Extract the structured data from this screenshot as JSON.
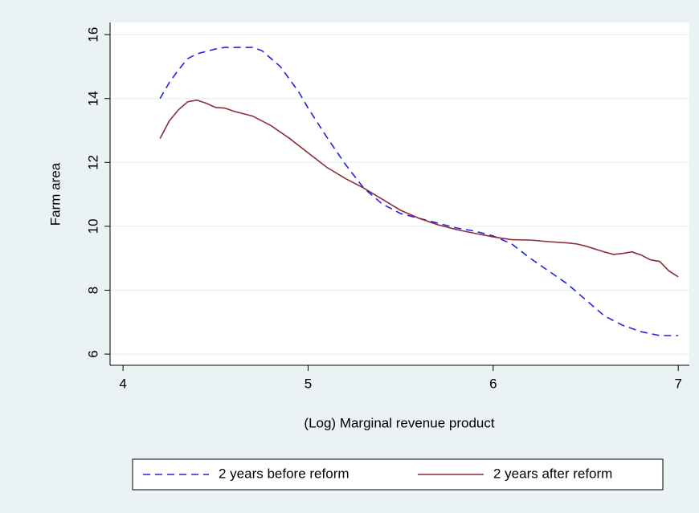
{
  "chart_data": {
    "type": "line",
    "x_label": "(Log) Marginal revenue product",
    "y_label": "Farm area",
    "xlim": [
      3.93,
      7.06
    ],
    "ylim": [
      5.65,
      16.38
    ],
    "xticks": [
      4,
      5,
      6,
      7
    ],
    "yticks": [
      6,
      8,
      10,
      12,
      14,
      16
    ],
    "grid": true,
    "legend": "bottom",
    "series": [
      {
        "name": "2 years before reform",
        "color": "#2020e8",
        "style": "dashed",
        "x": [
          4.2,
          4.25,
          4.3,
          4.35,
          4.4,
          4.5,
          4.55,
          4.6,
          4.7,
          4.75,
          4.85,
          4.95,
          5.0,
          5.1,
          5.2,
          5.3,
          5.4,
          5.5,
          5.6,
          5.7,
          5.8,
          5.9,
          6.0,
          6.1,
          6.2,
          6.3,
          6.4,
          6.5,
          6.6,
          6.7,
          6.8,
          6.9,
          7.0
        ],
        "values": [
          14.0,
          14.5,
          14.9,
          15.25,
          15.4,
          15.55,
          15.6,
          15.6,
          15.6,
          15.5,
          15.0,
          14.2,
          13.7,
          12.8,
          11.95,
          11.2,
          10.7,
          10.4,
          10.25,
          10.1,
          9.95,
          9.85,
          9.7,
          9.45,
          9.0,
          8.6,
          8.2,
          7.7,
          7.2,
          6.9,
          6.7,
          6.58,
          6.58
        ]
      },
      {
        "name": "2 years after reform",
        "color": "#8b2e36",
        "style": "solid",
        "x": [
          4.2,
          4.25,
          4.3,
          4.35,
          4.4,
          4.45,
          4.5,
          4.55,
          4.6,
          4.7,
          4.8,
          4.9,
          5.0,
          5.1,
          5.2,
          5.3,
          5.4,
          5.5,
          5.6,
          5.7,
          5.8,
          5.9,
          6.0,
          6.1,
          6.2,
          6.3,
          6.4,
          6.45,
          6.5,
          6.6,
          6.65,
          6.7,
          6.75,
          6.8,
          6.85,
          6.9,
          6.95,
          7.0
        ],
        "values": [
          12.75,
          13.3,
          13.65,
          13.9,
          13.95,
          13.85,
          13.72,
          13.7,
          13.6,
          13.45,
          13.15,
          12.75,
          12.3,
          11.85,
          11.5,
          11.2,
          10.85,
          10.5,
          10.25,
          10.05,
          9.9,
          9.78,
          9.67,
          9.58,
          9.57,
          9.52,
          9.48,
          9.45,
          9.38,
          9.2,
          9.12,
          9.15,
          9.2,
          9.1,
          8.95,
          8.9,
          8.6,
          8.42
        ]
      }
    ]
  }
}
